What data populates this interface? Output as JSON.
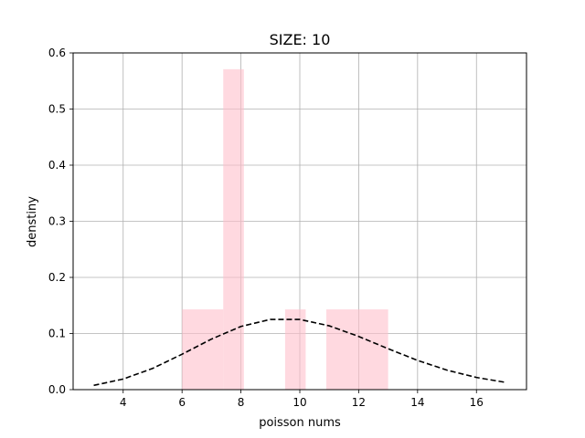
{
  "chart_data": {
    "type": "bar",
    "title": "SIZE: 10",
    "xlabel": "poisson nums",
    "ylabel": "denstiny",
    "xlim": [
      2.3,
      17.7
    ],
    "ylim": [
      0,
      0.6
    ],
    "xticks": [
      4,
      6,
      8,
      10,
      12,
      14,
      16
    ],
    "yticks": [
      0.0,
      0.1,
      0.2,
      0.3,
      0.4,
      0.5,
      0.6
    ],
    "ytick_labels": [
      "0.0",
      "0.1",
      "0.2",
      "0.3",
      "0.4",
      "0.5",
      "0.6"
    ],
    "grid": true,
    "histogram": {
      "color": "#ffc0cb",
      "opacity": 0.6,
      "bins": [
        {
          "x0": 6.0,
          "x1": 7.4,
          "density": 0.143
        },
        {
          "x0": 7.4,
          "x1": 8.1,
          "density": 0.571
        },
        {
          "x0": 9.5,
          "x1": 10.2,
          "density": 0.143
        },
        {
          "x0": 10.9,
          "x1": 13.0,
          "density": 0.143
        }
      ]
    },
    "pmf_line": {
      "style": "dashed",
      "color": "#000000",
      "x": [
        3,
        4,
        5,
        6,
        7,
        8,
        9,
        10,
        11,
        12,
        13,
        14,
        15,
        16,
        17
      ],
      "y": [
        0.0076,
        0.0189,
        0.0378,
        0.0631,
        0.0901,
        0.1126,
        0.1251,
        0.1251,
        0.1137,
        0.0948,
        0.0729,
        0.0521,
        0.0347,
        0.0217,
        0.0128
      ]
    }
  }
}
